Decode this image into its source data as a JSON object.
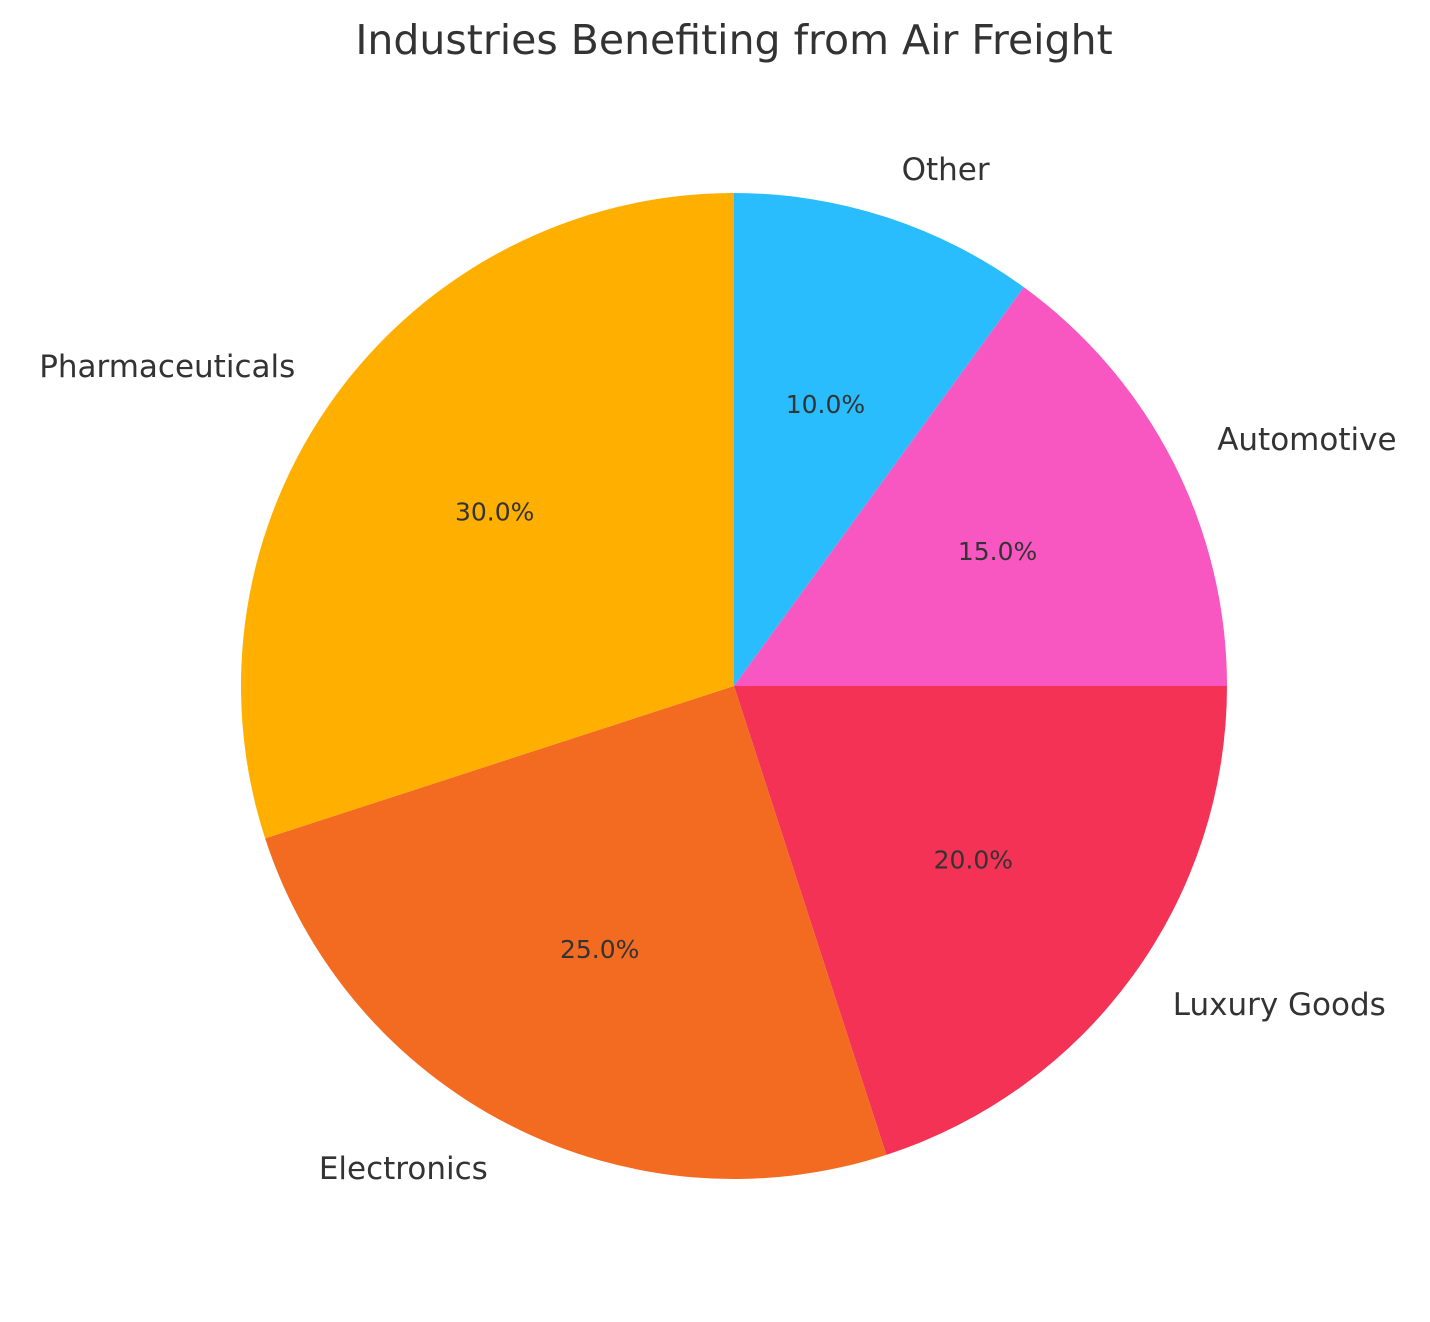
{
  "chart_data": {
    "type": "pie",
    "title": "Industries Benefiting from Air Freight",
    "start_angle_deg": 90,
    "direction": "clockwise",
    "slices": [
      {
        "label": "Other",
        "value": 10.0,
        "pct_label": "10.0%",
        "color": "#29BDFD"
      },
      {
        "label": "Automotive",
        "value": 15.0,
        "pct_label": "15.0%",
        "color": "#F857C1"
      },
      {
        "label": "Luxury Goods",
        "value": 20.0,
        "pct_label": "20.0%",
        "color": "#F43255"
      },
      {
        "label": "Electronics",
        "value": 25.0,
        "pct_label": "25.0%",
        "color": "#F26B21"
      },
      {
        "label": "Pharmaceuticals",
        "value": 30.0,
        "pct_label": "30.0%",
        "color": "#FEAF00"
      }
    ]
  }
}
